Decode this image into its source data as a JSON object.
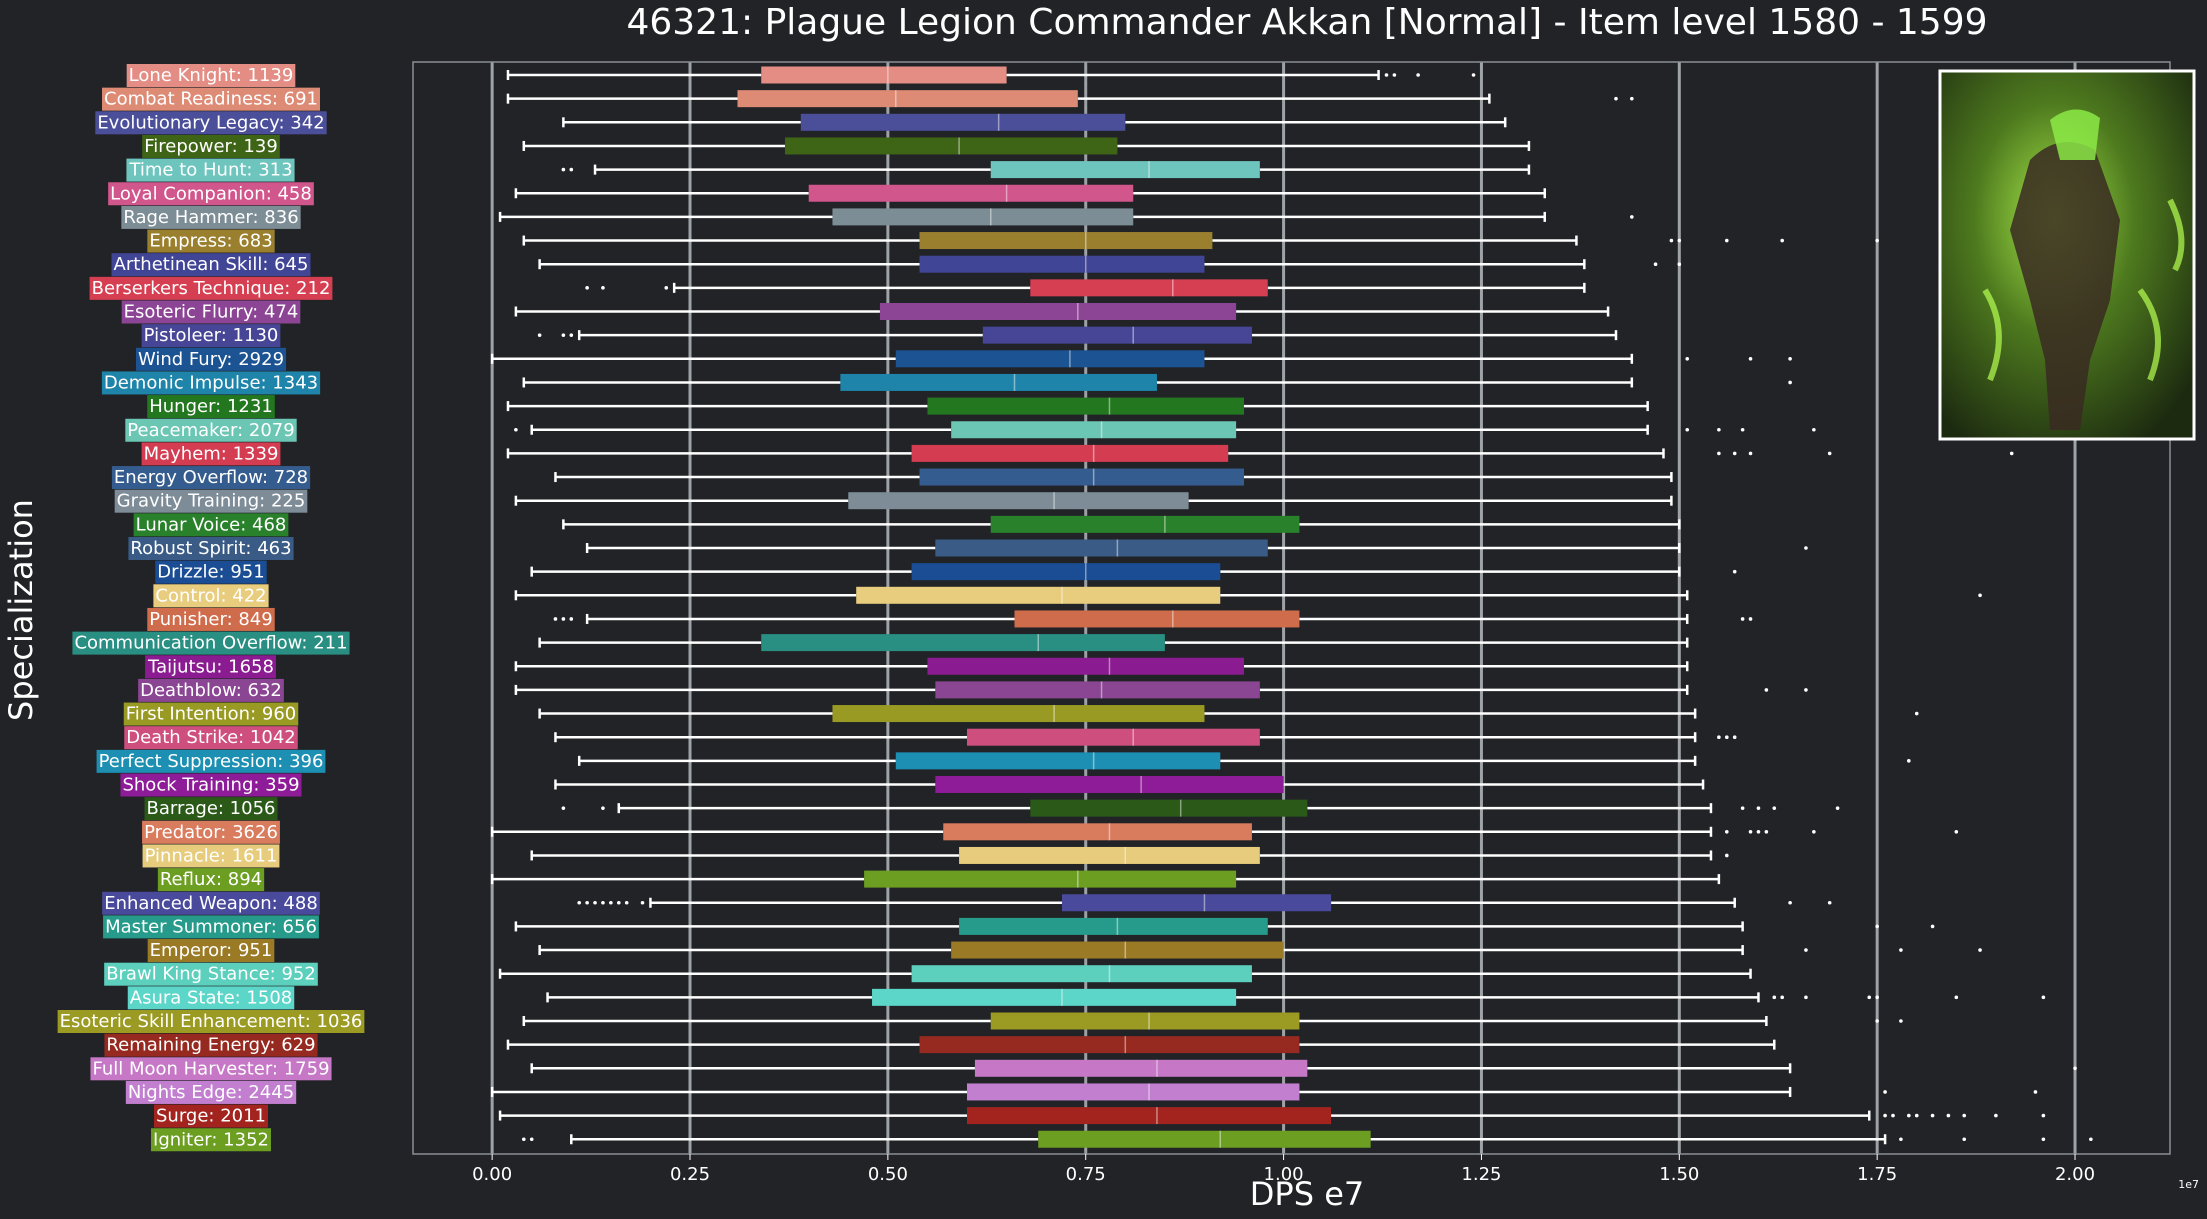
{
  "chart_data": {
    "type": "box",
    "title": "46321: Plague Legion Commander Akkan [Normal] - Item level 1580 - 1599",
    "xlabel": "DPS e7",
    "ylabel": "Specialization",
    "x_offset_text": "1e7",
    "xlim": [
      -0.1,
      2.12
    ],
    "xticks": [
      0.0,
      0.25,
      0.5,
      0.75,
      1.0,
      1.25,
      1.5,
      1.75,
      2.0
    ],
    "xtick_labels": [
      "0.00",
      "0.25",
      "0.50",
      "0.75",
      "1.00",
      "1.25",
      "1.50",
      "1.75",
      "2.00"
    ],
    "grid": "vertical",
    "overall_median": 0.75,
    "inset_image": "boss-portrait",
    "background": "#212327",
    "series": [
      {
        "label": "Lone Knight: 1139",
        "color": "#e48d84",
        "whislo": 0.02,
        "q1": 0.34,
        "med": 0.5,
        "q3": 0.65,
        "whishi": 1.12,
        "fliers": [
          1.13,
          1.14,
          1.17,
          1.24
        ]
      },
      {
        "label": "Combat Readiness: 691",
        "color": "#de8b75",
        "whislo": 0.02,
        "q1": 0.31,
        "med": 0.51,
        "q3": 0.74,
        "whishi": 1.26,
        "fliers": [
          1.42,
          1.44
        ]
      },
      {
        "label": "Evolutionary Legacy: 342",
        "color": "#4b4f9a",
        "whislo": 0.09,
        "q1": 0.39,
        "med": 0.64,
        "q3": 0.8,
        "whishi": 1.28,
        "fliers": []
      },
      {
        "label": "Firepower: 139",
        "color": "#3e6516",
        "whislo": 0.04,
        "q1": 0.37,
        "med": 0.59,
        "q3": 0.79,
        "whishi": 1.31,
        "fliers": []
      },
      {
        "label": "Time to Hunt: 313",
        "color": "#6dc5bd",
        "whislo": 0.13,
        "q1": 0.63,
        "med": 0.83,
        "q3": 0.97,
        "whishi": 1.31,
        "fliers": [
          0.09,
          0.1
        ]
      },
      {
        "label": "Loyal Companion: 458",
        "color": "#d1568c",
        "whislo": 0.03,
        "q1": 0.4,
        "med": 0.65,
        "q3": 0.81,
        "whishi": 1.33,
        "fliers": []
      },
      {
        "label": "Rage Hammer: 836",
        "color": "#7d8d95",
        "whislo": 0.01,
        "q1": 0.43,
        "med": 0.63,
        "q3": 0.81,
        "whishi": 1.33,
        "fliers": [
          1.44
        ]
      },
      {
        "label": "Empress: 683",
        "color": "#9a802e",
        "whislo": 0.04,
        "q1": 0.54,
        "med": 0.75,
        "q3": 0.91,
        "whishi": 1.37,
        "fliers": [
          1.49,
          1.5,
          1.56,
          1.63,
          1.75
        ]
      },
      {
        "label": "Arthetinean Skill: 645",
        "color": "#414596",
        "whislo": 0.06,
        "q1": 0.54,
        "med": 0.75,
        "q3": 0.9,
        "whishi": 1.38,
        "fliers": [
          1.47,
          1.5
        ]
      },
      {
        "label": "Berserkers Technique: 212",
        "color": "#d63f52",
        "whislo": 0.23,
        "q1": 0.68,
        "med": 0.86,
        "q3": 0.98,
        "whishi": 1.38,
        "fliers": [
          0.12,
          0.14,
          0.22
        ]
      },
      {
        "label": "Esoteric Flurry: 474",
        "color": "#8c4595",
        "whislo": 0.03,
        "q1": 0.49,
        "med": 0.74,
        "q3": 0.94,
        "whishi": 1.41,
        "fliers": []
      },
      {
        "label": "Pistoleer: 1130",
        "color": "#474596",
        "whislo": 0.11,
        "q1": 0.62,
        "med": 0.81,
        "q3": 0.96,
        "whishi": 1.42,
        "fliers": [
          0.06,
          0.09,
          0.1
        ]
      },
      {
        "label": "Wind Fury: 2929",
        "color": "#1c5393",
        "whislo": 0.0,
        "q1": 0.51,
        "med": 0.73,
        "q3": 0.9,
        "whishi": 1.44,
        "fliers": [
          1.51,
          1.59,
          1.64
        ]
      },
      {
        "label": "Demonic Impulse: 1343",
        "color": "#1f84a9",
        "whislo": 0.04,
        "q1": 0.44,
        "med": 0.66,
        "q3": 0.84,
        "whishi": 1.44,
        "fliers": [
          1.64
        ]
      },
      {
        "label": "Hunger: 1231",
        "color": "#23781f",
        "whislo": 0.02,
        "q1": 0.55,
        "med": 0.78,
        "q3": 0.95,
        "whishi": 1.46,
        "fliers": []
      },
      {
        "label": "Peacemaker: 2079",
        "color": "#6bc6b4",
        "whislo": 0.05,
        "q1": 0.58,
        "med": 0.77,
        "q3": 0.94,
        "whishi": 1.46,
        "fliers": [
          0.03,
          1.51,
          1.55,
          1.58,
          1.67
        ]
      },
      {
        "label": "Mayhem: 1339",
        "color": "#d43c52",
        "whislo": 0.02,
        "q1": 0.53,
        "med": 0.76,
        "q3": 0.93,
        "whishi": 1.48,
        "fliers": [
          1.55,
          1.57,
          1.59,
          1.69,
          1.92
        ]
      },
      {
        "label": "Energy Overflow: 728",
        "color": "#355c8e",
        "whislo": 0.08,
        "q1": 0.54,
        "med": 0.76,
        "q3": 0.95,
        "whishi": 1.49,
        "fliers": []
      },
      {
        "label": "Gravity Training: 225",
        "color": "#7d8c97",
        "whislo": 0.03,
        "q1": 0.45,
        "med": 0.71,
        "q3": 0.88,
        "whishi": 1.49,
        "fliers": []
      },
      {
        "label": "Lunar Voice: 468",
        "color": "#29822b",
        "whislo": 0.09,
        "q1": 0.63,
        "med": 0.85,
        "q3": 1.02,
        "whishi": 1.5,
        "fliers": []
      },
      {
        "label": "Robust Spirit: 463",
        "color": "#395b86",
        "whislo": 0.12,
        "q1": 0.56,
        "med": 0.79,
        "q3": 0.98,
        "whishi": 1.5,
        "fliers": [
          1.66
        ]
      },
      {
        "label": "Drizzle: 951",
        "color": "#1a4d93",
        "whislo": 0.05,
        "q1": 0.53,
        "med": 0.75,
        "q3": 0.92,
        "whishi": 1.5,
        "fliers": [
          1.57
        ]
      },
      {
        "label": "Control: 422",
        "color": "#e8cd7f",
        "whislo": 0.03,
        "q1": 0.46,
        "med": 0.72,
        "q3": 0.92,
        "whishi": 1.51,
        "fliers": [
          1.88
        ]
      },
      {
        "label": "Punisher: 849",
        "color": "#cf6c4b",
        "whislo": 0.12,
        "q1": 0.66,
        "med": 0.86,
        "q3": 1.02,
        "whishi": 1.51,
        "fliers": [
          0.08,
          0.09,
          0.1,
          1.58,
          1.59
        ]
      },
      {
        "label": "Communication Overflow: 211",
        "color": "#2a8f83",
        "whislo": 0.06,
        "q1": 0.34,
        "med": 0.69,
        "q3": 0.85,
        "whishi": 1.51,
        "fliers": []
      },
      {
        "label": "Taijutsu: 1658",
        "color": "#8a1b91",
        "whislo": 0.03,
        "q1": 0.55,
        "med": 0.78,
        "q3": 0.95,
        "whishi": 1.51,
        "fliers": []
      },
      {
        "label": "Deathblow: 632",
        "color": "#8a4593",
        "whislo": 0.03,
        "q1": 0.56,
        "med": 0.77,
        "q3": 0.97,
        "whishi": 1.51,
        "fliers": [
          1.61,
          1.66
        ]
      },
      {
        "label": "First Intention: 960",
        "color": "#999a23",
        "whislo": 0.06,
        "q1": 0.43,
        "med": 0.71,
        "q3": 0.9,
        "whishi": 1.52,
        "fliers": [
          1.8
        ]
      },
      {
        "label": "Death Strike: 1042",
        "color": "#ce4f7d",
        "whislo": 0.08,
        "q1": 0.6,
        "med": 0.81,
        "q3": 0.97,
        "whishi": 1.52,
        "fliers": [
          1.55,
          1.56,
          1.57
        ]
      },
      {
        "label": "Perfect Suppression: 396",
        "color": "#1d8fb2",
        "whislo": 0.11,
        "q1": 0.51,
        "med": 0.76,
        "q3": 0.92,
        "whishi": 1.52,
        "fliers": [
          1.79
        ]
      },
      {
        "label": "Shock Training: 359",
        "color": "#8e1b97",
        "whislo": 0.08,
        "q1": 0.56,
        "med": 0.82,
        "q3": 1.0,
        "whishi": 1.53,
        "fliers": []
      },
      {
        "label": "Barrage: 1056",
        "color": "#2a5918",
        "whislo": 0.16,
        "q1": 0.68,
        "med": 0.87,
        "q3": 1.03,
        "whishi": 1.54,
        "fliers": [
          0.09,
          0.14,
          1.58,
          1.6,
          1.62,
          1.7
        ]
      },
      {
        "label": "Predator: 3626",
        "color": "#d97c5e",
        "whislo": 0.0,
        "q1": 0.57,
        "med": 0.78,
        "q3": 0.96,
        "whishi": 1.54,
        "fliers": [
          1.56,
          1.59,
          1.6,
          1.61,
          1.67,
          1.85
        ]
      },
      {
        "label": "Pinnacle: 1611",
        "color": "#e6cc7c",
        "whislo": 0.05,
        "q1": 0.59,
        "med": 0.8,
        "q3": 0.97,
        "whishi": 1.54,
        "fliers": [
          1.56
        ]
      },
      {
        "label": "Reflux: 894",
        "color": "#6c9e21",
        "whislo": 0.0,
        "q1": 0.47,
        "med": 0.74,
        "q3": 0.94,
        "whishi": 1.55,
        "fliers": []
      },
      {
        "label": "Enhanced Weapon: 488",
        "color": "#4a4a9c",
        "whislo": 0.2,
        "q1": 0.72,
        "med": 0.9,
        "q3": 1.06,
        "whishi": 1.57,
        "fliers": [
          0.11,
          0.12,
          0.13,
          0.14,
          0.15,
          0.16,
          0.17,
          0.19,
          1.64,
          1.69
        ]
      },
      {
        "label": "Master Summoner: 656",
        "color": "#279b8b",
        "whislo": 0.03,
        "q1": 0.59,
        "med": 0.79,
        "q3": 0.98,
        "whishi": 1.58,
        "fliers": [
          1.75,
          1.82
        ]
      },
      {
        "label": "Emperor: 951",
        "color": "#9b7a26",
        "whislo": 0.06,
        "q1": 0.58,
        "med": 0.8,
        "q3": 1.0,
        "whishi": 1.58,
        "fliers": [
          1.66,
          1.78,
          1.88
        ]
      },
      {
        "label": "Brawl King Stance: 952",
        "color": "#5ccfbd",
        "whislo": 0.01,
        "q1": 0.53,
        "med": 0.78,
        "q3": 0.96,
        "whishi": 1.59,
        "fliers": []
      },
      {
        "label": "Asura State: 1508",
        "color": "#5cd6c8",
        "whislo": 0.07,
        "q1": 0.48,
        "med": 0.72,
        "q3": 0.94,
        "whishi": 1.6,
        "fliers": [
          1.62,
          1.63,
          1.66,
          1.74,
          1.75,
          1.85,
          1.96
        ]
      },
      {
        "label": "Esoteric Skill Enhancement: 1036",
        "color": "#9b9a23",
        "whislo": 0.04,
        "q1": 0.63,
        "med": 0.83,
        "q3": 1.02,
        "whishi": 1.61,
        "fliers": [
          1.75,
          1.78
        ]
      },
      {
        "label": "Remaining Energy: 629",
        "color": "#962920",
        "whislo": 0.02,
        "q1": 0.54,
        "med": 0.8,
        "q3": 1.02,
        "whishi": 1.62,
        "fliers": []
      },
      {
        "label": "Full Moon Harvester: 1759",
        "color": "#c677c6",
        "whislo": 0.05,
        "q1": 0.61,
        "med": 0.84,
        "q3": 1.03,
        "whishi": 1.64,
        "fliers": [
          2.0
        ]
      },
      {
        "label": "Nights Edge: 2445",
        "color": "#c27fcf",
        "whislo": 0.0,
        "q1": 0.6,
        "med": 0.83,
        "q3": 1.02,
        "whishi": 1.64,
        "fliers": [
          1.76,
          1.95
        ]
      },
      {
        "label": "Surge: 2011",
        "color": "#a3241e",
        "whislo": 0.01,
        "q1": 0.6,
        "med": 0.84,
        "q3": 1.06,
        "whishi": 1.74,
        "fliers": [
          1.76,
          1.77,
          1.79,
          1.8,
          1.82,
          1.84,
          1.86,
          1.9,
          1.96
        ]
      },
      {
        "label": "Igniter: 1352",
        "color": "#6b9e21",
        "whislo": 0.1,
        "q1": 0.69,
        "med": 0.92,
        "q3": 1.11,
        "whishi": 1.76,
        "fliers": [
          0.04,
          0.05,
          1.78,
          1.86,
          1.96,
          2.02
        ]
      }
    ]
  }
}
